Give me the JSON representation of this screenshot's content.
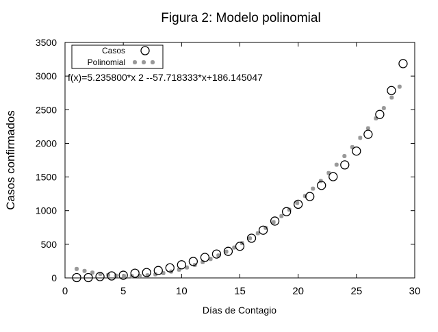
{
  "chart_data": {
    "type": "scatter",
    "title": "Figura 2: Modelo polinomial",
    "xlabel": "Días de Contagio",
    "ylabel": "Casos confirmados",
    "xlim": [
      0,
      30
    ],
    "ylim": [
      0,
      3500
    ],
    "xticks": [
      0,
      5,
      10,
      15,
      20,
      25,
      30
    ],
    "yticks": [
      0,
      500,
      1000,
      1500,
      2000,
      2500,
      3000,
      3500
    ],
    "grid": false,
    "legend_placement": "top-left",
    "annotation": "f(x)=5.235800*x 2 --57.718333*x+186.145047",
    "series": [
      {
        "name": "Casos",
        "marker": "open-circle",
        "color": "#000000",
        "x": [
          1,
          2,
          3,
          4,
          5,
          6,
          7,
          8,
          9,
          10,
          11,
          12,
          13,
          14,
          15,
          16,
          17,
          18,
          19,
          20,
          21,
          22,
          23,
          24,
          25,
          26,
          27,
          28,
          29
        ],
        "y": [
          5,
          5,
          20,
          30,
          40,
          70,
          80,
          110,
          150,
          195,
          245,
          305,
          355,
          395,
          470,
          590,
          710,
          845,
          985,
          1095,
          1210,
          1375,
          1505,
          1680,
          1885,
          2135,
          2430,
          2785,
          3185
        ]
      },
      {
        "name": "Polinomial",
        "marker": "star",
        "color": "#999999",
        "coefficients": {
          "a": 5.2358,
          "b": -57.718333,
          "c": 186.145047
        },
        "x_range": [
          1,
          28.7
        ],
        "samples": 42
      }
    ]
  }
}
